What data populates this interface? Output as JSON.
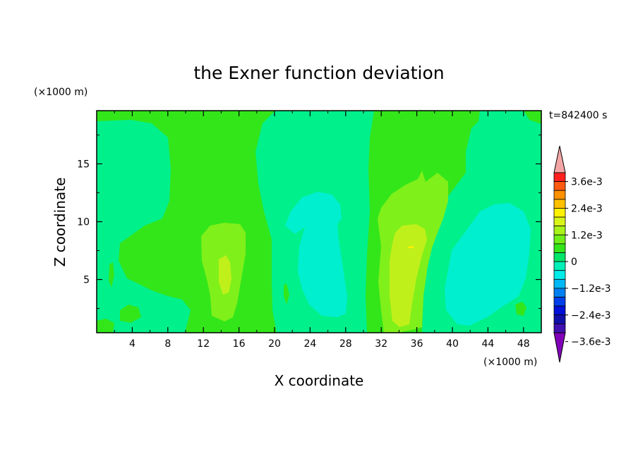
{
  "chart_data": {
    "type": "heatmap",
    "title": "the Exner function deviation",
    "xlabel": "X coordinate",
    "ylabel": "Z coordinate",
    "x_unit": "(×1000 m)",
    "y_unit": "(×1000 m)",
    "time_label": "t=842400 s",
    "xlim": [
      0,
      50
    ],
    "ylim": [
      0.4,
      19.6
    ],
    "x_ticks": [
      4,
      8,
      12,
      16,
      20,
      24,
      28,
      32,
      36,
      40,
      44,
      48
    ],
    "x_tick_labels": [
      "4",
      "8",
      "12",
      "16",
      "20",
      "24",
      "28",
      "32",
      "36",
      "40",
      "44",
      "48"
    ],
    "y_ticks": [
      5,
      10,
      15
    ],
    "y_tick_labels": [
      "5",
      "10",
      "15"
    ],
    "colorbar": {
      "levels": [
        "3.6e-3",
        "2.4e-3",
        "1.2e-3",
        "0",
        "−1.2e-3",
        "−2.4e-3",
        "−3.6e-3"
      ],
      "colors_top_to_bottom": [
        "#f4a6a6",
        "#ff2020",
        "#ff5a10",
        "#ff9000",
        "#ffc000",
        "#fff200",
        "#d8f51a",
        "#a8f41a",
        "#70ee1a",
        "#33e61a",
        "#00e66a",
        "#00f0b8",
        "#00ecea",
        "#00b8f5",
        "#0080f0",
        "#0040ea",
        "#0010d8",
        "#1010a8",
        "#4010b0",
        "#8000b8"
      ]
    },
    "regions": [
      {
        "value": "0 to 0.4e-3",
        "color": "#33e61a"
      },
      {
        "value": "-0.4e-3 to 0",
        "color": "#00f08c"
      },
      {
        "value": "0.4e-3 to 0.8e-3",
        "color": "#80f01a"
      },
      {
        "value": "0.8e-3 to 1.2e-3",
        "color": "#c0f01a"
      },
      {
        "value": "-0.8e-3 to -0.4e-3",
        "color": "#00efcf"
      }
    ]
  }
}
